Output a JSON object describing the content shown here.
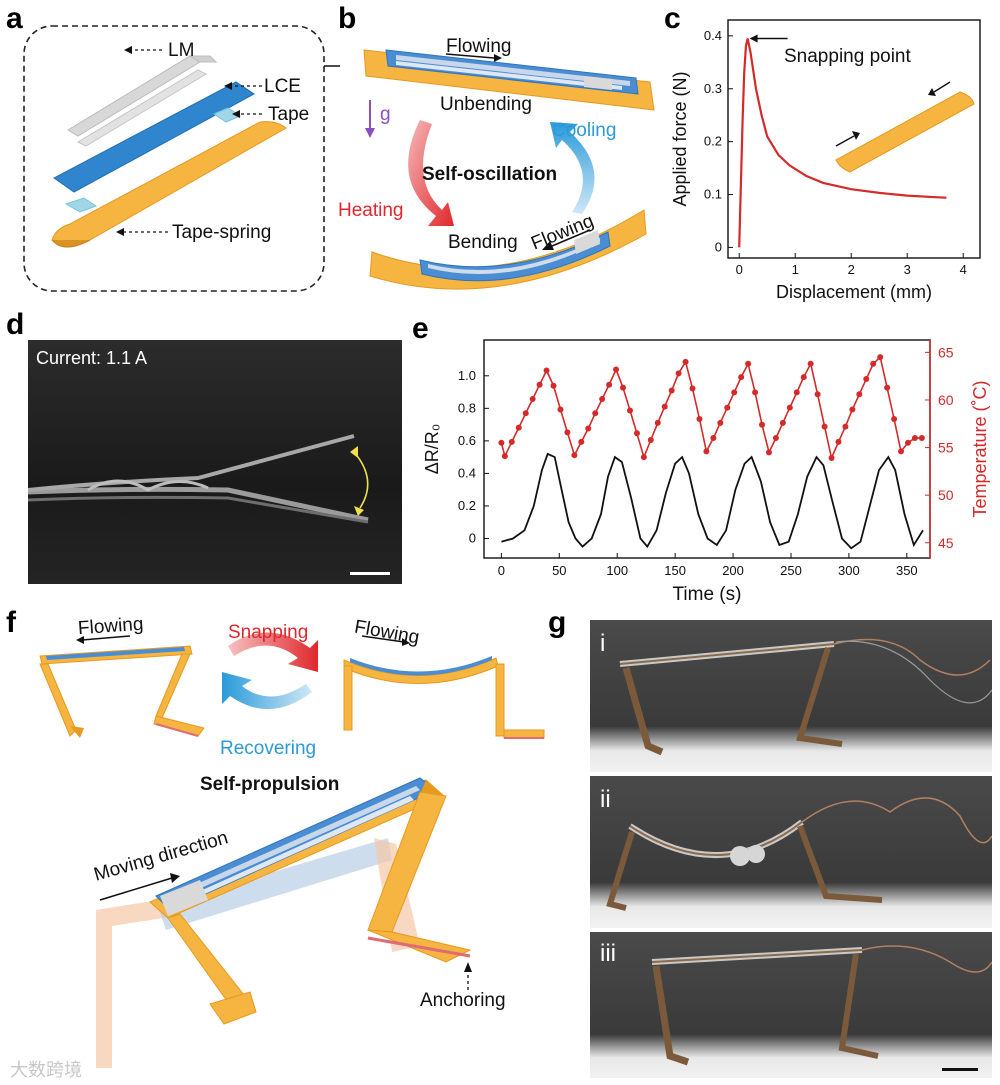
{
  "panels": {
    "a": {
      "label": "a",
      "layers": [
        "LM",
        "LCE",
        "Tape",
        "Tape-spring"
      ]
    },
    "b": {
      "label": "b",
      "flowing_top": "Flowing",
      "flowing_bottom": "Flowing",
      "gravity": "g",
      "unbending": "Unbending",
      "bending": "Bending",
      "heating": "Heating",
      "cooling": "Cooling",
      "center": "Self-oscillation",
      "colors": {
        "heating": "#e0272c",
        "cooling": "#2a9ad8",
        "gravity": "#8a4fc0"
      }
    },
    "c": {
      "label": "c",
      "annotation": "Snapping point"
    },
    "d": {
      "label": "d",
      "current": "Current:  1.1 A"
    },
    "e": {
      "label": "e"
    },
    "f": {
      "label": "f",
      "flowing_left": "Flowing",
      "flowing_right": "Flowing",
      "snapping": "Snapping",
      "recovering": "Recovering",
      "title": "Self-propulsion",
      "moving": "Moving direction",
      "anchoring": "Anchoring",
      "colors": {
        "snapping": "#e0272c",
        "recovering": "#2a9ad8",
        "tape": "#f5b23c",
        "lce": "#4d8fd4"
      }
    },
    "g": {
      "label": "g",
      "sub": [
        "i",
        "ii",
        "iii"
      ]
    }
  },
  "watermark": "大数跨境",
  "chart_data": [
    {
      "type": "line",
      "panel": "c",
      "xlabel": "Displacement (mm)",
      "ylabel": "Applied force (N)",
      "xlim": [
        -0.2,
        4.3
      ],
      "ylim": [
        -0.02,
        0.43
      ],
      "xticks": [
        0,
        1,
        2,
        3,
        4
      ],
      "yticks": [
        0,
        0.1,
        0.2,
        0.3,
        0.4
      ],
      "series": [
        {
          "color": "#d42a2a",
          "x": [
            0,
            0.03,
            0.06,
            0.09,
            0.12,
            0.15,
            0.2,
            0.3,
            0.4,
            0.5,
            0.7,
            0.9,
            1.2,
            1.5,
            2.0,
            2.5,
            3.0,
            3.5,
            3.7
          ],
          "y": [
            0,
            0.12,
            0.24,
            0.33,
            0.38,
            0.395,
            0.37,
            0.3,
            0.25,
            0.21,
            0.175,
            0.155,
            0.135,
            0.122,
            0.11,
            0.103,
            0.098,
            0.095,
            0.094
          ]
        }
      ]
    },
    {
      "type": "line",
      "panel": "e",
      "xlabel": "Time (s)",
      "ylabel": "ΔR/R₀",
      "ylabel_right": "Temperature (˚C)",
      "xlim": [
        -15,
        370
      ],
      "ylim": [
        -0.12,
        1.22
      ],
      "ylim_right": [
        43.4,
        66.3
      ],
      "xticks": [
        0,
        50,
        100,
        150,
        200,
        250,
        300,
        350
      ],
      "yticks": [
        0,
        0.2,
        0.4,
        0.6,
        0.8,
        1.0
      ],
      "yticks_right": [
        45,
        50,
        55,
        60,
        65
      ],
      "series": [
        {
          "name": "ΔR/R₀",
          "axis": "left",
          "color": "#111111",
          "x": [
            0,
            10,
            20,
            28,
            35,
            40,
            46,
            52,
            58,
            64,
            70,
            78,
            86,
            92,
            98,
            104,
            112,
            120,
            126,
            134,
            142,
            150,
            156,
            162,
            170,
            178,
            186,
            194,
            202,
            210,
            216,
            224,
            232,
            240,
            248,
            256,
            264,
            272,
            278,
            286,
            294,
            302,
            310,
            318,
            326,
            334,
            340,
            348,
            356,
            364
          ],
          "y": [
            -0.02,
            0.0,
            0.05,
            0.2,
            0.42,
            0.52,
            0.5,
            0.3,
            0.1,
            0.0,
            -0.05,
            0.0,
            0.15,
            0.38,
            0.5,
            0.47,
            0.25,
            0.0,
            -0.05,
            0.05,
            0.28,
            0.46,
            0.5,
            0.4,
            0.15,
            0.0,
            -0.04,
            0.05,
            0.3,
            0.46,
            0.5,
            0.35,
            0.1,
            -0.04,
            -0.02,
            0.15,
            0.38,
            0.5,
            0.45,
            0.22,
            0.0,
            -0.06,
            -0.02,
            0.2,
            0.42,
            0.5,
            0.42,
            0.15,
            -0.04,
            0.05
          ]
        },
        {
          "name": "Temperature",
          "axis": "right",
          "color": "#d42a2a",
          "x": [
            0,
            3,
            9,
            15,
            21,
            27,
            33,
            39,
            45,
            51,
            57,
            63,
            69,
            75,
            81,
            87,
            93,
            99,
            105,
            111,
            117,
            123,
            129,
            135,
            141,
            147,
            153,
            159,
            165,
            171,
            177,
            183,
            189,
            195,
            201,
            207,
            213,
            219,
            225,
            231,
            237,
            243,
            249,
            255,
            261,
            267,
            273,
            279,
            285,
            291,
            297,
            303,
            309,
            315,
            321,
            327,
            333,
            339,
            345,
            351,
            357,
            363
          ],
          "y": [
            55.5,
            54.1,
            55.6,
            57.1,
            58.6,
            60.1,
            61.6,
            63.1,
            61.5,
            59.0,
            56.6,
            54.2,
            55.6,
            57.0,
            58.6,
            60.1,
            61.6,
            63.2,
            61.3,
            58.9,
            56.5,
            54.0,
            55.8,
            57.6,
            59.3,
            61.0,
            62.8,
            64.0,
            61.2,
            58.0,
            54.6,
            56.0,
            57.6,
            59.2,
            60.8,
            62.4,
            63.8,
            60.8,
            57.4,
            54.5,
            56.0,
            57.6,
            59.2,
            60.8,
            62.4,
            63.8,
            60.6,
            57.2,
            53.9,
            55.6,
            57.2,
            59.0,
            60.6,
            62.2,
            63.8,
            64.5,
            61.3,
            58.0,
            54.6,
            55.5,
            56.0,
            56.0
          ]
        }
      ]
    }
  ]
}
